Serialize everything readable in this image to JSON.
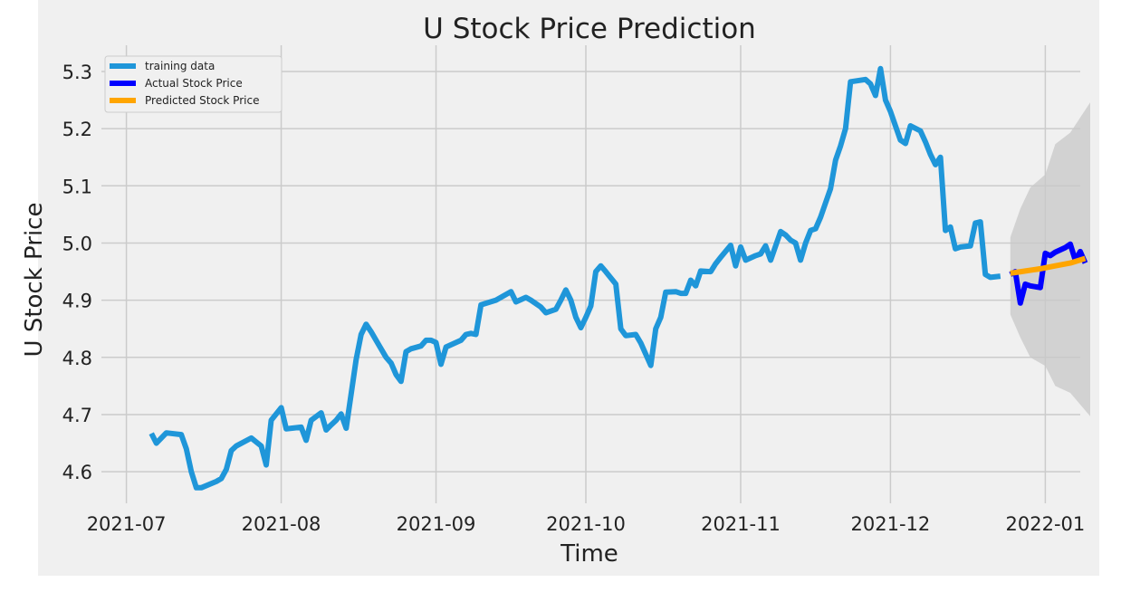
{
  "chart_data": {
    "type": "line",
    "title": "U Stock Price Prediction",
    "xlabel": "Time",
    "ylabel": "U Stock Price",
    "xlim": [
      "2021-06-26",
      "2022-01-08"
    ],
    "ylim": [
      4.548,
      5.33
    ],
    "x_ticks": [
      "2021-07-01",
      "2021-08-01",
      "2021-09-01",
      "2021-10-01",
      "2021-11-01",
      "2021-12-01",
      "2022-01-01"
    ],
    "x_tick_labels": [
      "2021-07",
      "2021-08",
      "2021-09",
      "2021-10",
      "2021-11",
      "2021-12",
      "2022-01"
    ],
    "y_ticks": [
      4.6,
      4.7,
      4.8,
      4.9,
      5.0,
      5.1,
      5.2,
      5.3
    ],
    "y_tick_labels": [
      "4.6",
      "4.7",
      "4.8",
      "4.9",
      "5.0",
      "5.1",
      "5.2",
      "5.3"
    ],
    "grid": true,
    "legend_position": "top-left",
    "background": "#f0f0f0",
    "series": [
      {
        "name": "training data",
        "color": "#1f96d9",
        "points": [
          [
            "2021-07-06",
            4.667
          ],
          [
            "2021-07-07",
            4.65
          ],
          [
            "2021-07-09",
            4.668
          ],
          [
            "2021-07-12",
            4.665
          ],
          [
            "2021-07-13",
            4.64
          ],
          [
            "2021-07-14",
            4.6
          ],
          [
            "2021-07-15",
            4.572
          ],
          [
            "2021-07-16",
            4.572
          ],
          [
            "2021-07-19",
            4.583
          ],
          [
            "2021-07-20",
            4.588
          ],
          [
            "2021-07-21",
            4.604
          ],
          [
            "2021-07-22",
            4.637
          ],
          [
            "2021-07-23",
            4.645
          ],
          [
            "2021-07-26",
            4.659
          ],
          [
            "2021-07-27",
            4.652
          ],
          [
            "2021-07-28",
            4.645
          ],
          [
            "2021-07-29",
            4.612
          ],
          [
            "2021-07-30",
            4.69
          ],
          [
            "2021-08-01",
            4.712
          ],
          [
            "2021-08-02",
            4.675
          ],
          [
            "2021-08-03",
            4.676
          ],
          [
            "2021-08-04",
            4.677
          ],
          [
            "2021-08-05",
            4.678
          ],
          [
            "2021-08-06",
            4.655
          ],
          [
            "2021-08-07",
            4.69
          ],
          [
            "2021-08-09",
            4.703
          ],
          [
            "2021-08-10",
            4.673
          ],
          [
            "2021-08-11",
            4.682
          ],
          [
            "2021-08-12",
            4.69
          ],
          [
            "2021-08-13",
            4.701
          ],
          [
            "2021-08-14",
            4.676
          ],
          [
            "2021-08-16",
            4.796
          ],
          [
            "2021-08-17",
            4.84
          ],
          [
            "2021-08-18",
            4.858
          ],
          [
            "2021-08-19",
            4.845
          ],
          [
            "2021-08-20",
            4.83
          ],
          [
            "2021-08-22",
            4.8
          ],
          [
            "2021-08-23",
            4.79
          ],
          [
            "2021-08-24",
            4.77
          ],
          [
            "2021-08-25",
            4.758
          ],
          [
            "2021-08-26",
            4.81
          ],
          [
            "2021-08-27",
            4.815
          ],
          [
            "2021-08-29",
            4.82
          ],
          [
            "2021-08-30",
            4.83
          ],
          [
            "2021-08-31",
            4.83
          ],
          [
            "2021-09-01",
            4.826
          ],
          [
            "2021-09-02",
            4.788
          ],
          [
            "2021-09-03",
            4.818
          ],
          [
            "2021-09-06",
            4.83
          ],
          [
            "2021-09-07",
            4.84
          ],
          [
            "2021-09-08",
            4.842
          ],
          [
            "2021-09-09",
            4.84
          ],
          [
            "2021-09-10",
            4.892
          ],
          [
            "2021-09-13",
            4.9
          ],
          [
            "2021-09-14",
            4.905
          ],
          [
            "2021-09-16",
            4.915
          ],
          [
            "2021-09-17",
            4.897
          ],
          [
            "2021-09-19",
            4.905
          ],
          [
            "2021-09-20",
            4.9
          ],
          [
            "2021-09-22",
            4.888
          ],
          [
            "2021-09-23",
            4.878
          ],
          [
            "2021-09-25",
            4.884
          ],
          [
            "2021-09-26",
            4.9
          ],
          [
            "2021-09-27",
            4.918
          ],
          [
            "2021-09-28",
            4.9
          ],
          [
            "2021-09-29",
            4.87
          ],
          [
            "2021-09-30",
            4.852
          ],
          [
            "2021-10-01",
            4.87
          ],
          [
            "2021-10-02",
            4.89
          ],
          [
            "2021-10-03",
            4.95
          ],
          [
            "2021-10-04",
            4.96
          ],
          [
            "2021-10-05",
            4.95
          ],
          [
            "2021-10-07",
            4.928
          ],
          [
            "2021-10-08",
            4.85
          ],
          [
            "2021-10-09",
            4.838
          ],
          [
            "2021-10-11",
            4.84
          ],
          [
            "2021-10-12",
            4.825
          ],
          [
            "2021-10-14",
            4.786
          ],
          [
            "2021-10-15",
            4.85
          ],
          [
            "2021-10-16",
            4.87
          ],
          [
            "2021-10-17",
            4.914
          ],
          [
            "2021-10-19",
            4.915
          ],
          [
            "2021-10-20",
            4.912
          ],
          [
            "2021-10-21",
            4.912
          ],
          [
            "2021-10-22",
            4.935
          ],
          [
            "2021-10-23",
            4.925
          ],
          [
            "2021-10-24",
            4.951
          ],
          [
            "2021-10-26",
            4.95
          ],
          [
            "2021-10-27",
            4.964
          ],
          [
            "2021-10-28",
            4.975
          ],
          [
            "2021-10-30",
            4.996
          ],
          [
            "2021-10-31",
            4.96
          ],
          [
            "2021-11-01",
            4.993
          ],
          [
            "2021-11-02",
            4.97
          ],
          [
            "2021-11-04",
            4.978
          ],
          [
            "2021-11-05",
            4.981
          ],
          [
            "2021-11-06",
            4.995
          ],
          [
            "2021-11-07",
            4.97
          ],
          [
            "2021-11-09",
            5.02
          ],
          [
            "2021-11-10",
            5.014
          ],
          [
            "2021-11-11",
            5.005
          ],
          [
            "2021-11-12",
            5.0
          ],
          [
            "2021-11-13",
            4.97
          ],
          [
            "2021-11-14",
            5.0
          ],
          [
            "2021-11-15",
            5.022
          ],
          [
            "2021-11-16",
            5.025
          ],
          [
            "2021-11-17",
            5.045
          ],
          [
            "2021-11-18",
            5.07
          ],
          [
            "2021-11-19",
            5.095
          ],
          [
            "2021-11-20",
            5.145
          ],
          [
            "2021-11-21",
            5.17
          ],
          [
            "2021-11-22",
            5.2
          ],
          [
            "2021-11-23",
            5.282
          ],
          [
            "2021-11-26",
            5.286
          ],
          [
            "2021-11-27",
            5.278
          ],
          [
            "2021-11-28",
            5.258
          ],
          [
            "2021-11-29",
            5.305
          ],
          [
            "2021-11-30",
            5.25
          ],
          [
            "2021-12-01",
            5.23
          ],
          [
            "2021-12-02",
            5.205
          ],
          [
            "2021-12-03",
            5.18
          ],
          [
            "2021-12-04",
            5.174
          ],
          [
            "2021-12-05",
            5.205
          ],
          [
            "2021-12-07",
            5.196
          ],
          [
            "2021-12-08",
            5.177
          ],
          [
            "2021-12-09",
            5.155
          ],
          [
            "2021-12-10",
            5.137
          ],
          [
            "2021-12-11",
            5.15
          ],
          [
            "2021-12-12",
            5.022
          ],
          [
            "2021-12-13",
            5.028
          ],
          [
            "2021-12-14",
            4.99
          ],
          [
            "2021-12-15",
            4.993
          ],
          [
            "2021-12-17",
            4.995
          ],
          [
            "2021-12-18",
            5.035
          ],
          [
            "2021-12-19",
            5.037
          ],
          [
            "2021-12-20",
            4.945
          ],
          [
            "2021-12-21",
            4.94
          ],
          [
            "2021-12-23",
            4.942
          ]
        ]
      },
      {
        "name": "Actual Stock Price",
        "color": "#0000ff",
        "points": [
          [
            "2021-12-25",
            4.945
          ],
          [
            "2021-12-26",
            4.95
          ],
          [
            "2021-12-27",
            4.895
          ],
          [
            "2021-12-28",
            4.928
          ],
          [
            "2021-12-29",
            4.925
          ],
          [
            "2021-12-31",
            4.922
          ],
          [
            "2022-01-01",
            4.982
          ],
          [
            "2022-01-02",
            4.978
          ],
          [
            "2022-01-03",
            4.984
          ],
          [
            "2022-01-05",
            4.992
          ],
          [
            "2022-01-06",
            4.998
          ],
          [
            "2022-01-07",
            4.97
          ],
          [
            "2022-01-08",
            4.985
          ],
          [
            "2022-01-09",
            4.965
          ]
        ]
      },
      {
        "name": "Predicted Stock Price",
        "color": "#ffa500",
        "points": [
          [
            "2021-12-25",
            4.947
          ],
          [
            "2021-12-28",
            4.951
          ],
          [
            "2021-12-31",
            4.955
          ],
          [
            "2022-01-03",
            4.96
          ],
          [
            "2022-01-06",
            4.965
          ],
          [
            "2022-01-09",
            4.973
          ]
        ]
      }
    ],
    "confidence_band": {
      "color": "#c8c8c8",
      "upper": [
        [
          "2021-12-25",
          5.01
        ],
        [
          "2021-12-27",
          5.06
        ],
        [
          "2021-12-29",
          5.097
        ],
        [
          "2022-01-01",
          5.12
        ],
        [
          "2022-01-03",
          5.173
        ],
        [
          "2022-01-06",
          5.193
        ],
        [
          "2022-01-10",
          5.246
        ]
      ],
      "lower": [
        [
          "2021-12-25",
          4.875
        ],
        [
          "2021-12-27",
          4.835
        ],
        [
          "2021-12-29",
          4.8
        ],
        [
          "2022-01-01",
          4.785
        ],
        [
          "2022-01-03",
          4.75
        ],
        [
          "2022-01-06",
          4.738
        ],
        [
          "2022-01-10",
          4.697
        ]
      ]
    }
  }
}
